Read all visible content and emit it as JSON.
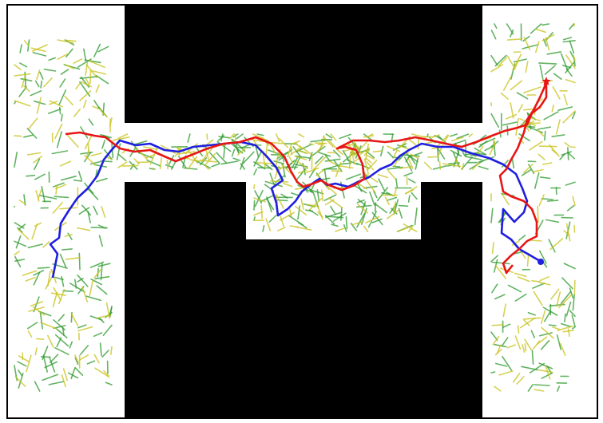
{
  "colors": {
    "obstacle": "#000000",
    "free_space": "#ffffff",
    "frame": "#000000",
    "tree_a": "#2e9a2e",
    "tree_b": "#c8c21a",
    "path_blue": "#1f1fe0",
    "path_red": "#e81515"
  },
  "markers": {
    "start": {
      "shape": "circle",
      "color": "#1f1fe0"
    },
    "goal": {
      "shape": "star",
      "color": "#e81515"
    }
  }
}
